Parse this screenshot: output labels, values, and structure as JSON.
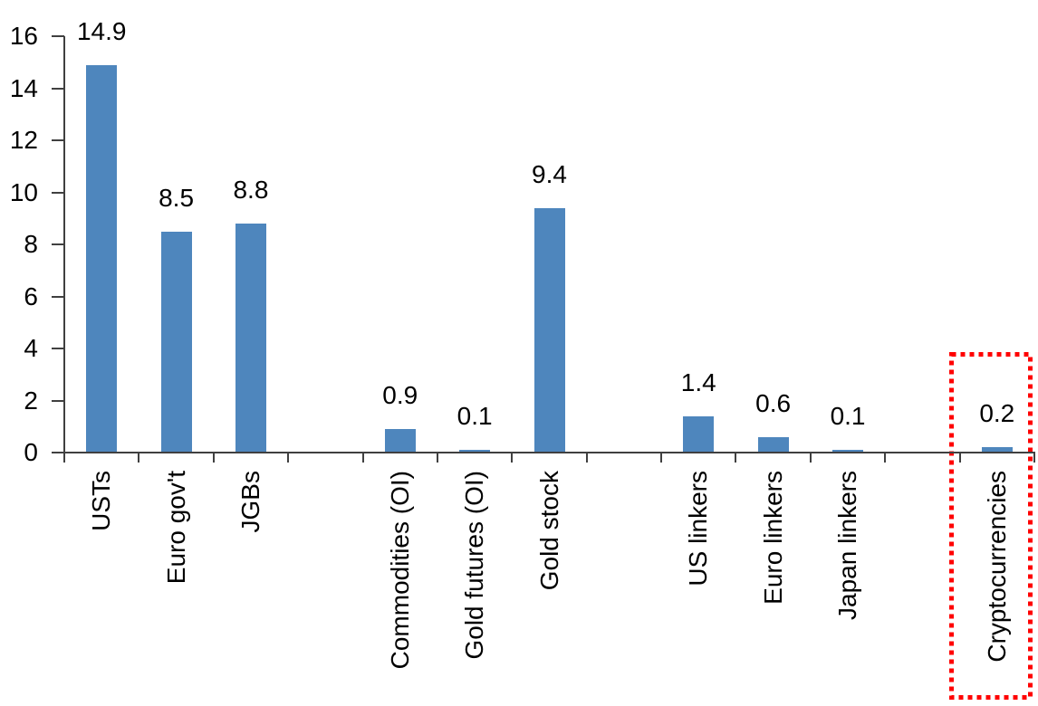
{
  "chart_data": {
    "type": "bar",
    "title": "",
    "categories": [
      "USTs",
      "Euro gov't",
      "JGBs",
      "Commodities (OI)",
      "Gold futures (OI)",
      "Gold stock",
      "US linkers",
      "Euro linkers",
      "Japan linkers",
      "Cryptocurrencies"
    ],
    "values": [
      14.9,
      8.5,
      8.8,
      0.9,
      0.1,
      9.4,
      1.4,
      0.6,
      0.1,
      0.2
    ],
    "data_labels": [
      "14.9",
      "8.5",
      "8.8",
      "0.9",
      "0.1",
      "9.4",
      "1.4",
      "0.6",
      "0.1",
      "0.2"
    ],
    "slot_indices": [
      0,
      1,
      2,
      4,
      5,
      6,
      8,
      9,
      10,
      12
    ],
    "total_slots": 13,
    "yticks": [
      "0",
      "2",
      "4",
      "6",
      "8",
      "10",
      "12",
      "14",
      "16"
    ],
    "ylim": [
      0,
      16
    ],
    "xlabel": "",
    "ylabel": "",
    "grid": false,
    "legend": false,
    "category_label_rotation_deg": -90,
    "bar_color": "#4E86BD",
    "axis_color": "#404040",
    "text_color": "#000000",
    "highlight_box": {
      "around_category": "Cryptocurrencies",
      "color": "#FF0000",
      "style": "dotted"
    }
  }
}
